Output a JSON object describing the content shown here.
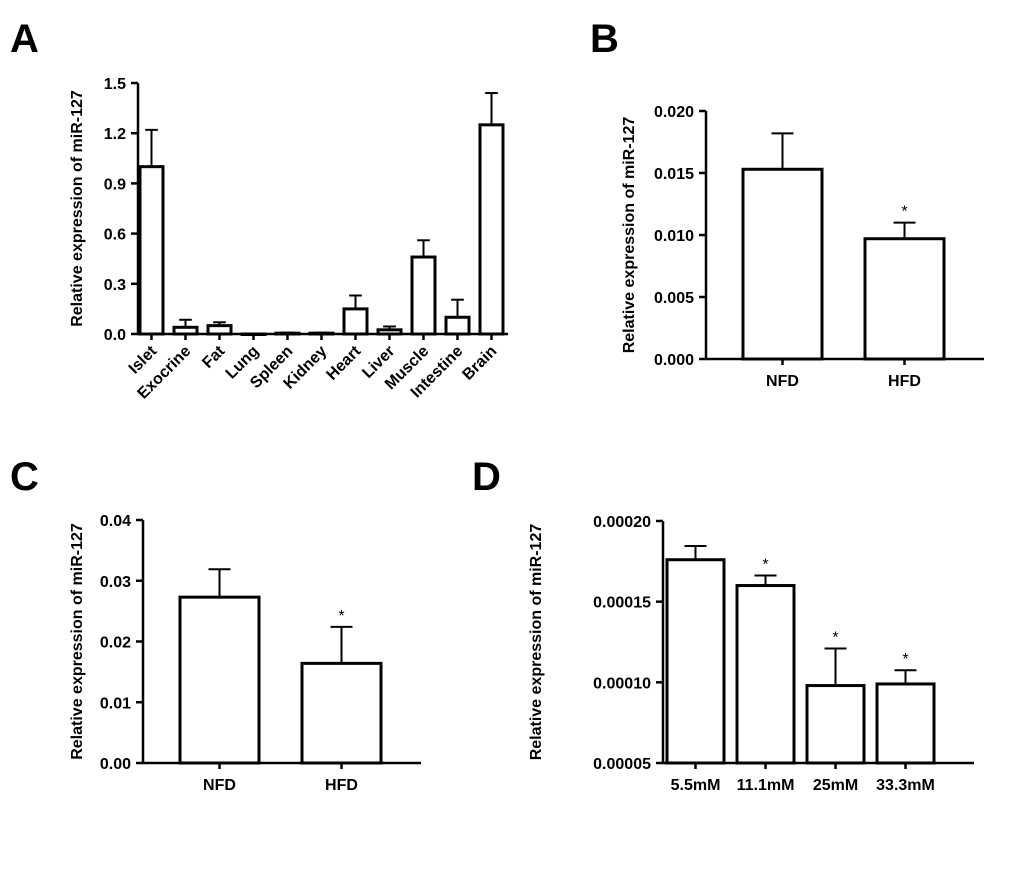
{
  "chart_data": [
    {
      "panel": "A",
      "type": "bar",
      "ylabel": "Relative expression of miR-127",
      "ylim": [
        0,
        1.5
      ],
      "yticks": [
        "0.0",
        "0.3",
        "0.6",
        "0.9",
        "1.2",
        "1.5"
      ],
      "categories": [
        "Islet",
        "Exocrine",
        "Fat",
        "Lung",
        "Spleen",
        "Kidney",
        "Heart",
        "Liver",
        "Muscle",
        "Intestine",
        "Brain"
      ],
      "values": [
        1.0,
        0.04,
        0.05,
        0.0,
        0.005,
        0.005,
        0.15,
        0.025,
        0.46,
        0.1,
        1.25
      ],
      "errors": [
        0.22,
        0.045,
        0.02,
        0.0,
        0.003,
        0.003,
        0.08,
        0.02,
        0.1,
        0.105,
        0.19
      ],
      "significance": [
        "",
        "",
        "",
        "",
        "",
        "",
        "",
        "",
        "",
        "",
        ""
      ]
    },
    {
      "panel": "B",
      "type": "bar",
      "ylabel": "Relative expression of miR-127",
      "ylim": [
        0,
        0.02
      ],
      "yticks": [
        "0.000",
        "0.005",
        "0.010",
        "0.015",
        "0.020"
      ],
      "categories": [
        "NFD",
        "HFD"
      ],
      "values": [
        0.0153,
        0.0097
      ],
      "errors": [
        0.0029,
        0.0013
      ],
      "significance": [
        "",
        "*"
      ]
    },
    {
      "panel": "C",
      "type": "bar",
      "ylabel": "Relative expression of miR-127",
      "ylim": [
        0,
        0.04
      ],
      "yticks": [
        "0.00",
        "0.01",
        "0.02",
        "0.03",
        "0.04"
      ],
      "categories": [
        "NFD",
        "HFD"
      ],
      "values": [
        0.0273,
        0.0164
      ],
      "errors": [
        0.0046,
        0.006
      ],
      "significance": [
        "",
        "*"
      ]
    },
    {
      "panel": "D",
      "type": "bar",
      "ylabel": "Relative expression of miR-127",
      "ylim": [
        5e-05,
        0.0002
      ],
      "yticks": [
        "0.00005",
        "0.00010",
        "0.00015",
        "0.00020"
      ],
      "categories": [
        "5.5mM",
        "11.1mM",
        "25mM",
        "33.3mM"
      ],
      "values": [
        0.000176,
        0.00016,
        9.8e-05,
        9.9e-05
      ],
      "errors": [
        8.5e-06,
        6.2e-06,
        2.3e-05,
        8.5e-06
      ],
      "significance": [
        "",
        "*",
        "*",
        "*"
      ]
    }
  ]
}
